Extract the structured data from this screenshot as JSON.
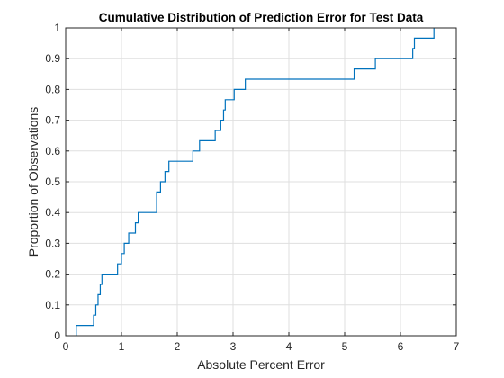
{
  "chart_data": {
    "type": "line",
    "title": "Cumulative Distribution of Prediction Error for Test Data",
    "xlabel": "Absolute Percent Error",
    "ylabel": "Proportion of Observations",
    "xlim": [
      0,
      7
    ],
    "ylim": [
      0,
      1
    ],
    "xticks": [
      0,
      1,
      2,
      3,
      4,
      5,
      6,
      7
    ],
    "xtick_labels": [
      "0",
      "1",
      "2",
      "3",
      "4",
      "5",
      "6",
      "7"
    ],
    "yticks": [
      0,
      0.1,
      0.2,
      0.3,
      0.4,
      0.5,
      0.6,
      0.7,
      0.8,
      0.9,
      1
    ],
    "ytick_labels": [
      "0",
      "0.1",
      "0.2",
      "0.3",
      "0.4",
      "0.5",
      "0.6",
      "0.7",
      "0.8",
      "0.9",
      "1"
    ],
    "grid": true,
    "step": true,
    "series": [
      {
        "color": "#0072BD",
        "x": [
          0.19,
          0.19,
          0.5,
          0.54,
          0.58,
          0.62,
          0.65,
          0.93,
          1.0,
          1.05,
          1.13,
          1.25,
          1.3,
          1.63,
          1.7,
          1.78,
          1.85,
          1.9,
          2.28,
          2.4,
          2.68,
          2.78,
          2.83,
          2.86,
          3.02,
          3.22,
          5.17,
          5.55,
          6.22,
          6.25,
          6.6
        ],
        "y": [
          0.0,
          0.0333,
          0.0667,
          0.1,
          0.1333,
          0.1667,
          0.2,
          0.2333,
          0.2667,
          0.3,
          0.3333,
          0.3667,
          0.4,
          0.4667,
          0.5,
          0.5333,
          0.5667,
          0.5667,
          0.6,
          0.6333,
          0.6667,
          0.7,
          0.7333,
          0.7667,
          0.8,
          0.8333,
          0.8667,
          0.9,
          0.9333,
          0.9667,
          1.0
        ]
      }
    ]
  }
}
